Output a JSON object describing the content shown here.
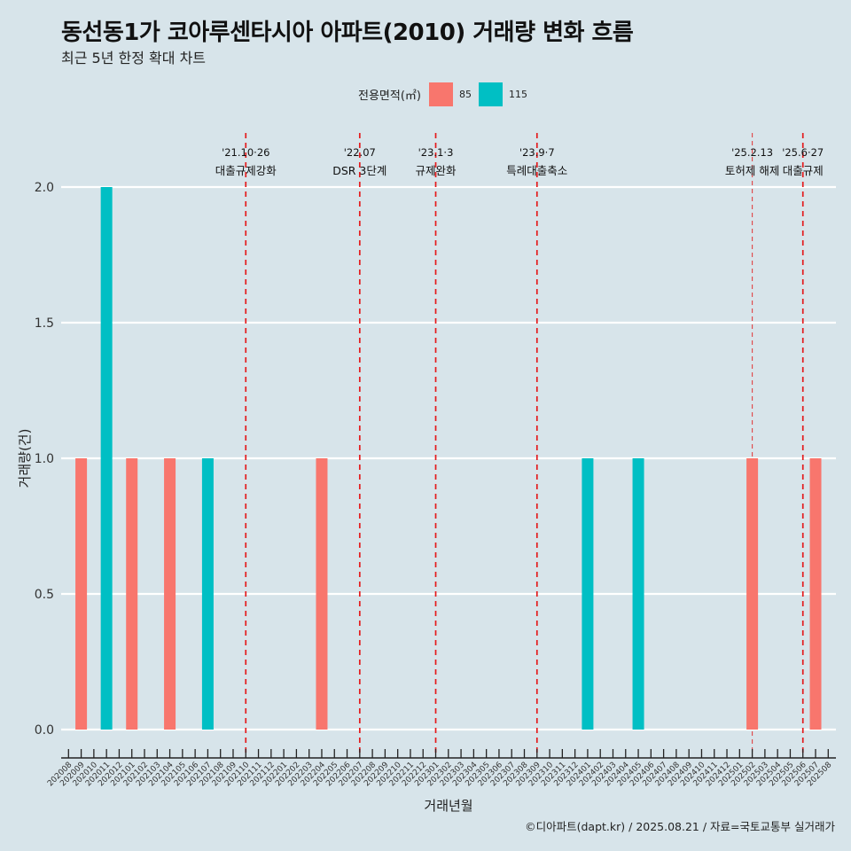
{
  "header": {
    "title": "동선동1가 코아루센타시아 아파트(2010) 거래량 변화 흐름",
    "subtitle": "최근 5년 한정 확대 차트"
  },
  "legend": {
    "title": "전용면적(㎡)",
    "items": [
      {
        "label": "85",
        "color": "#f8766d"
      },
      {
        "label": "115",
        "color": "#00bfc4"
      }
    ]
  },
  "caption": "©디아파트(dapt.kr) / 2025.08.21 / 자료=국토교통부 실거래가",
  "chart_data": {
    "type": "bar",
    "title": "동선동1가 코아루센타시아 아파트(2010) 거래량 변화 흐름",
    "subtitle": "최근 5년 한정 확대 차트",
    "xlabel": "거래년월",
    "ylabel": "거래량(건)",
    "ylim": [
      0,
      2
    ],
    "yticks": [
      "0.0",
      "0.5",
      "1.0",
      "1.5",
      "2.0"
    ],
    "ytick_values": [
      0,
      0.5,
      1.0,
      1.5,
      2.0
    ],
    "grid": "horizontal major",
    "legend_position": "top",
    "categories": [
      "202008",
      "202009",
      "202010",
      "202011",
      "202012",
      "202101",
      "202102",
      "202103",
      "202104",
      "202105",
      "202106",
      "202107",
      "202108",
      "202109",
      "202110",
      "202111",
      "202112",
      "202201",
      "202202",
      "202203",
      "202204",
      "202205",
      "202206",
      "202207",
      "202208",
      "202209",
      "202210",
      "202211",
      "202212",
      "202301",
      "202302",
      "202303",
      "202304",
      "202305",
      "202306",
      "202307",
      "202308",
      "202309",
      "202310",
      "202311",
      "202312",
      "202401",
      "202402",
      "202403",
      "202404",
      "202405",
      "202406",
      "202407",
      "202408",
      "202409",
      "202410",
      "202411",
      "202412",
      "202501",
      "202502",
      "202503",
      "202504",
      "202505",
      "202506",
      "202507",
      "202508"
    ],
    "bars": [
      {
        "month": "202009",
        "area": "85",
        "value": 1
      },
      {
        "month": "202011",
        "area": "115",
        "value": 2
      },
      {
        "month": "202101",
        "area": "85",
        "value": 1
      },
      {
        "month": "202104",
        "area": "85",
        "value": 1
      },
      {
        "month": "202107",
        "area": "115",
        "value": 1
      },
      {
        "month": "202204",
        "area": "85",
        "value": 1
      },
      {
        "month": "202401",
        "area": "115",
        "value": 1
      },
      {
        "month": "202405",
        "area": "115",
        "value": 1
      },
      {
        "month": "202502",
        "area": "85",
        "value": 1
      },
      {
        "month": "202507",
        "area": "85",
        "value": 1
      }
    ],
    "series_colors": {
      "85": "#f8766d",
      "115": "#00bfc4"
    },
    "events": [
      {
        "month": "202110",
        "date": "'21.10·26",
        "label": "대출규제강화",
        "style": "bold"
      },
      {
        "month": "202207",
        "date": "'22.07",
        "label": "DSR 3단계",
        "style": "bold"
      },
      {
        "month": "202301",
        "date": "'23.1·3",
        "label": "규제완화",
        "style": "bold"
      },
      {
        "month": "202309",
        "date": "'23.9·7",
        "label": "특례대출축소",
        "style": "bold"
      },
      {
        "month": "202502",
        "date": "'25.2.13",
        "label": "토허제 해제",
        "style": "light"
      },
      {
        "month": "202506",
        "date": "'25.6·27",
        "label": "대출규제",
        "style": "bold"
      }
    ],
    "event_line_color": "#e41a1c"
  }
}
